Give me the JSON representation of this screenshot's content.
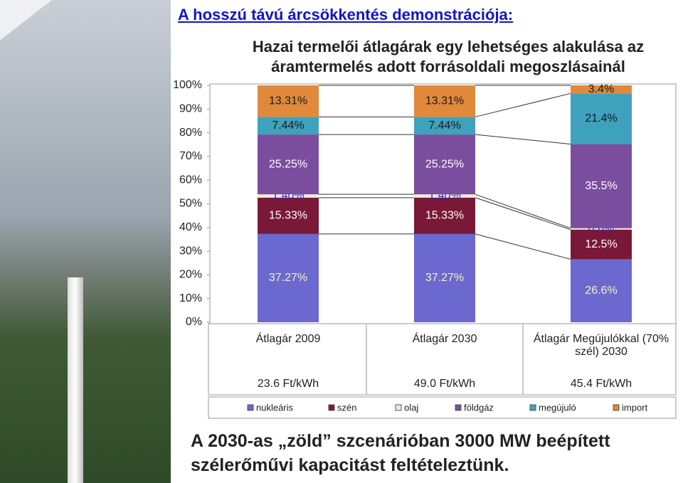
{
  "slide_title": "A hosszú távú árcsökkentés demonstrációja:",
  "chart_data": {
    "type": "bar",
    "stacked": true,
    "title": "Hazai termelői átlagárak egy lehetséges alakulása az áramtermelés adott forrásoldali megoszlásainál",
    "categories": [
      "Átlagár 2009",
      "Átlagár 2030",
      "Átlagár Megújulókkal (70% szél) 2030"
    ],
    "prices": [
      "23.6 Ft/kWh",
      "49.0 Ft/kWh",
      "45.4 Ft/kWh"
    ],
    "series": [
      {
        "name": "nukleáris",
        "color": "#6b68cf",
        "values": [
          37.27,
          37.27,
          26.6
        ],
        "value_labels": [
          "37.27%",
          "37.27%",
          "26.6%"
        ]
      },
      {
        "name": "szén",
        "color": "#7a1838",
        "values": [
          15.33,
          15.33,
          12.5
        ],
        "value_labels": [
          "15.33%",
          "15.33%",
          "12.5%"
        ]
      },
      {
        "name": "olaj",
        "color": "#ecebd8",
        "values": [
          1.4,
          1.4,
          0.6
        ],
        "value_labels": [
          "1.40%",
          "1.40%",
          "0.6%"
        ]
      },
      {
        "name": "földgáz",
        "color": "#7a4d9e",
        "values": [
          25.25,
          25.25,
          35.5
        ],
        "value_labels": [
          "25.25%",
          "25.25%",
          "35.5%"
        ]
      },
      {
        "name": "megújuló",
        "color": "#3ea2bd",
        "values": [
          7.44,
          7.44,
          21.4
        ],
        "value_labels": [
          "7.44%",
          "7.44%",
          "21.4%"
        ]
      },
      {
        "name": "import",
        "color": "#e0893a",
        "values": [
          13.31,
          13.31,
          3.4
        ],
        "value_labels": [
          "13.31%",
          "13.31%",
          "3.4%"
        ]
      }
    ],
    "ylim": [
      0,
      100
    ],
    "yticks": [
      {
        "value": 0,
        "label": "0%"
      },
      {
        "value": 10,
        "label": "10%"
      },
      {
        "value": 20,
        "label": "20%"
      },
      {
        "value": 30,
        "label": "30%"
      },
      {
        "value": 40,
        "label": "40%"
      },
      {
        "value": 50,
        "label": "50%"
      },
      {
        "value": 60,
        "label": "60%"
      },
      {
        "value": 70,
        "label": "70%"
      },
      {
        "value": 80,
        "label": "80%"
      },
      {
        "value": 90,
        "label": "90%"
      },
      {
        "value": 100,
        "label": "100%"
      }
    ]
  },
  "footer": "A 2030-as „zöld” szcenárióban 3000 MW beépített szélerőművi kapacitást feltételeztünk."
}
